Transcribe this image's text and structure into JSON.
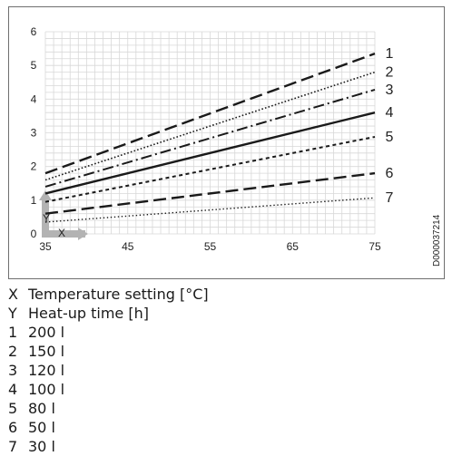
{
  "chart_data": {
    "type": "line",
    "document_code": "D000037214",
    "x_axis_symbol": "X",
    "y_axis_symbol": "Y",
    "xlim": [
      35,
      75
    ],
    "ylim": [
      0,
      6
    ],
    "x_ticks": [
      "35",
      "45",
      "55",
      "65",
      "75"
    ],
    "y_ticks": [
      "0",
      "1",
      "2",
      "3",
      "4",
      "5",
      "6"
    ],
    "grid": true,
    "series": [
      {
        "name": "1",
        "dash": "long-dash",
        "x": [
          35,
          75
        ],
        "y": [
          1.8,
          5.35
        ]
      },
      {
        "name": "2",
        "dash": "dotted",
        "x": [
          35,
          75
        ],
        "y": [
          1.6,
          4.8
        ]
      },
      {
        "name": "3",
        "dash": "dash-dot",
        "x": [
          35,
          75
        ],
        "y": [
          1.4,
          4.28
        ]
      },
      {
        "name": "4",
        "dash": "solid",
        "x": [
          35,
          75
        ],
        "y": [
          1.2,
          3.6
        ]
      },
      {
        "name": "5",
        "dash": "short-dash",
        "x": [
          35,
          75
        ],
        "y": [
          0.95,
          2.88
        ]
      },
      {
        "name": "6",
        "dash": "long-dash",
        "x": [
          35,
          75
        ],
        "y": [
          0.6,
          1.8
        ]
      },
      {
        "name": "7",
        "dash": "fine-dotted",
        "x": [
          35,
          75
        ],
        "y": [
          0.35,
          1.07
        ]
      }
    ]
  },
  "legend": [
    {
      "key": "X",
      "text": "Temperature setting [°C]"
    },
    {
      "key": "Y",
      "text": "Heat-up time [h]"
    },
    {
      "key": "1",
      "text": "200 l"
    },
    {
      "key": "2",
      "text": "150 l"
    },
    {
      "key": "3",
      "text": "120 l"
    },
    {
      "key": "4",
      "text": "100 l"
    },
    {
      "key": "5",
      "text": "80 l"
    },
    {
      "key": "6",
      "text": "50 l"
    },
    {
      "key": "7",
      "text": "30 l"
    }
  ],
  "colors": {
    "line": "#1a1a1a",
    "grid": "#d8d8d8",
    "axis_marker": "#b3b3b3"
  }
}
